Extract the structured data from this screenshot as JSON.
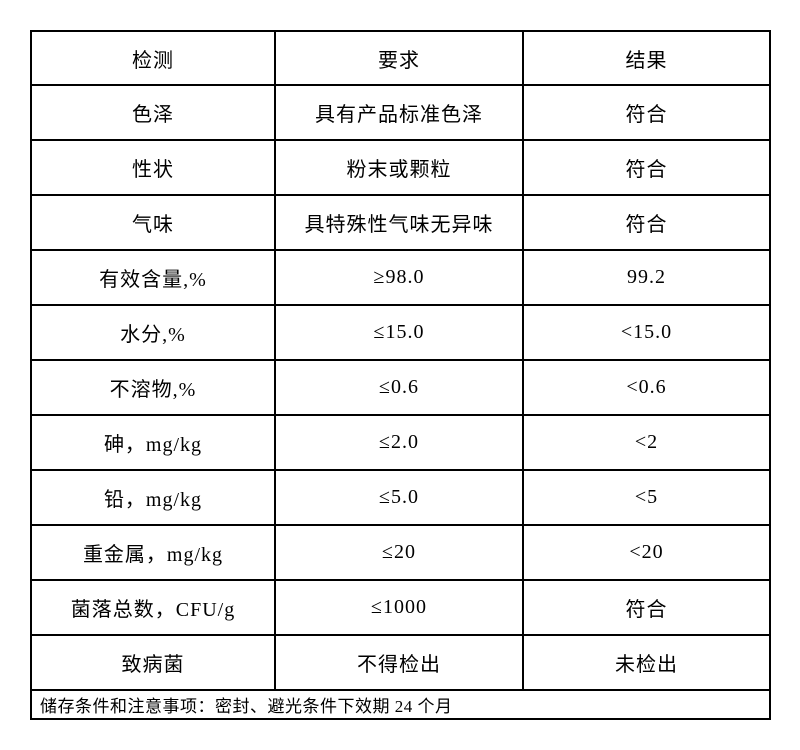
{
  "table": {
    "headers": {
      "test": "检测",
      "requirement": "要求",
      "result": "结果"
    },
    "rows": [
      {
        "test": "色泽",
        "requirement": "具有产品标准色泽",
        "result": "符合"
      },
      {
        "test": "性状",
        "requirement": "粉末或颗粒",
        "result": "符合"
      },
      {
        "test": "气味",
        "requirement": "具特殊性气味无异味",
        "result": "符合"
      },
      {
        "test": "有效含量,%",
        "requirement": "≥98.0",
        "result": "99.2"
      },
      {
        "test": "水分,%",
        "requirement": "≤15.0",
        "result": "<15.0"
      },
      {
        "test": "不溶物,%",
        "requirement": "≤0.6",
        "result": "<0.6"
      },
      {
        "test": "砷，mg/kg",
        "requirement": "≤2.0",
        "result": "<2"
      },
      {
        "test": "铅，mg/kg",
        "requirement": "≤5.0",
        "result": "<5"
      },
      {
        "test": "重金属，mg/kg",
        "requirement": "≤20",
        "result": "<20"
      },
      {
        "test": "菌落总数，CFU/g",
        "requirement": "≤1000",
        "result": "符合"
      },
      {
        "test": "致病菌",
        "requirement": "不得检出",
        "result": "未检出"
      }
    ],
    "footer_note": "储存条件和注意事项：密封、避光条件下效期 24 个月"
  }
}
